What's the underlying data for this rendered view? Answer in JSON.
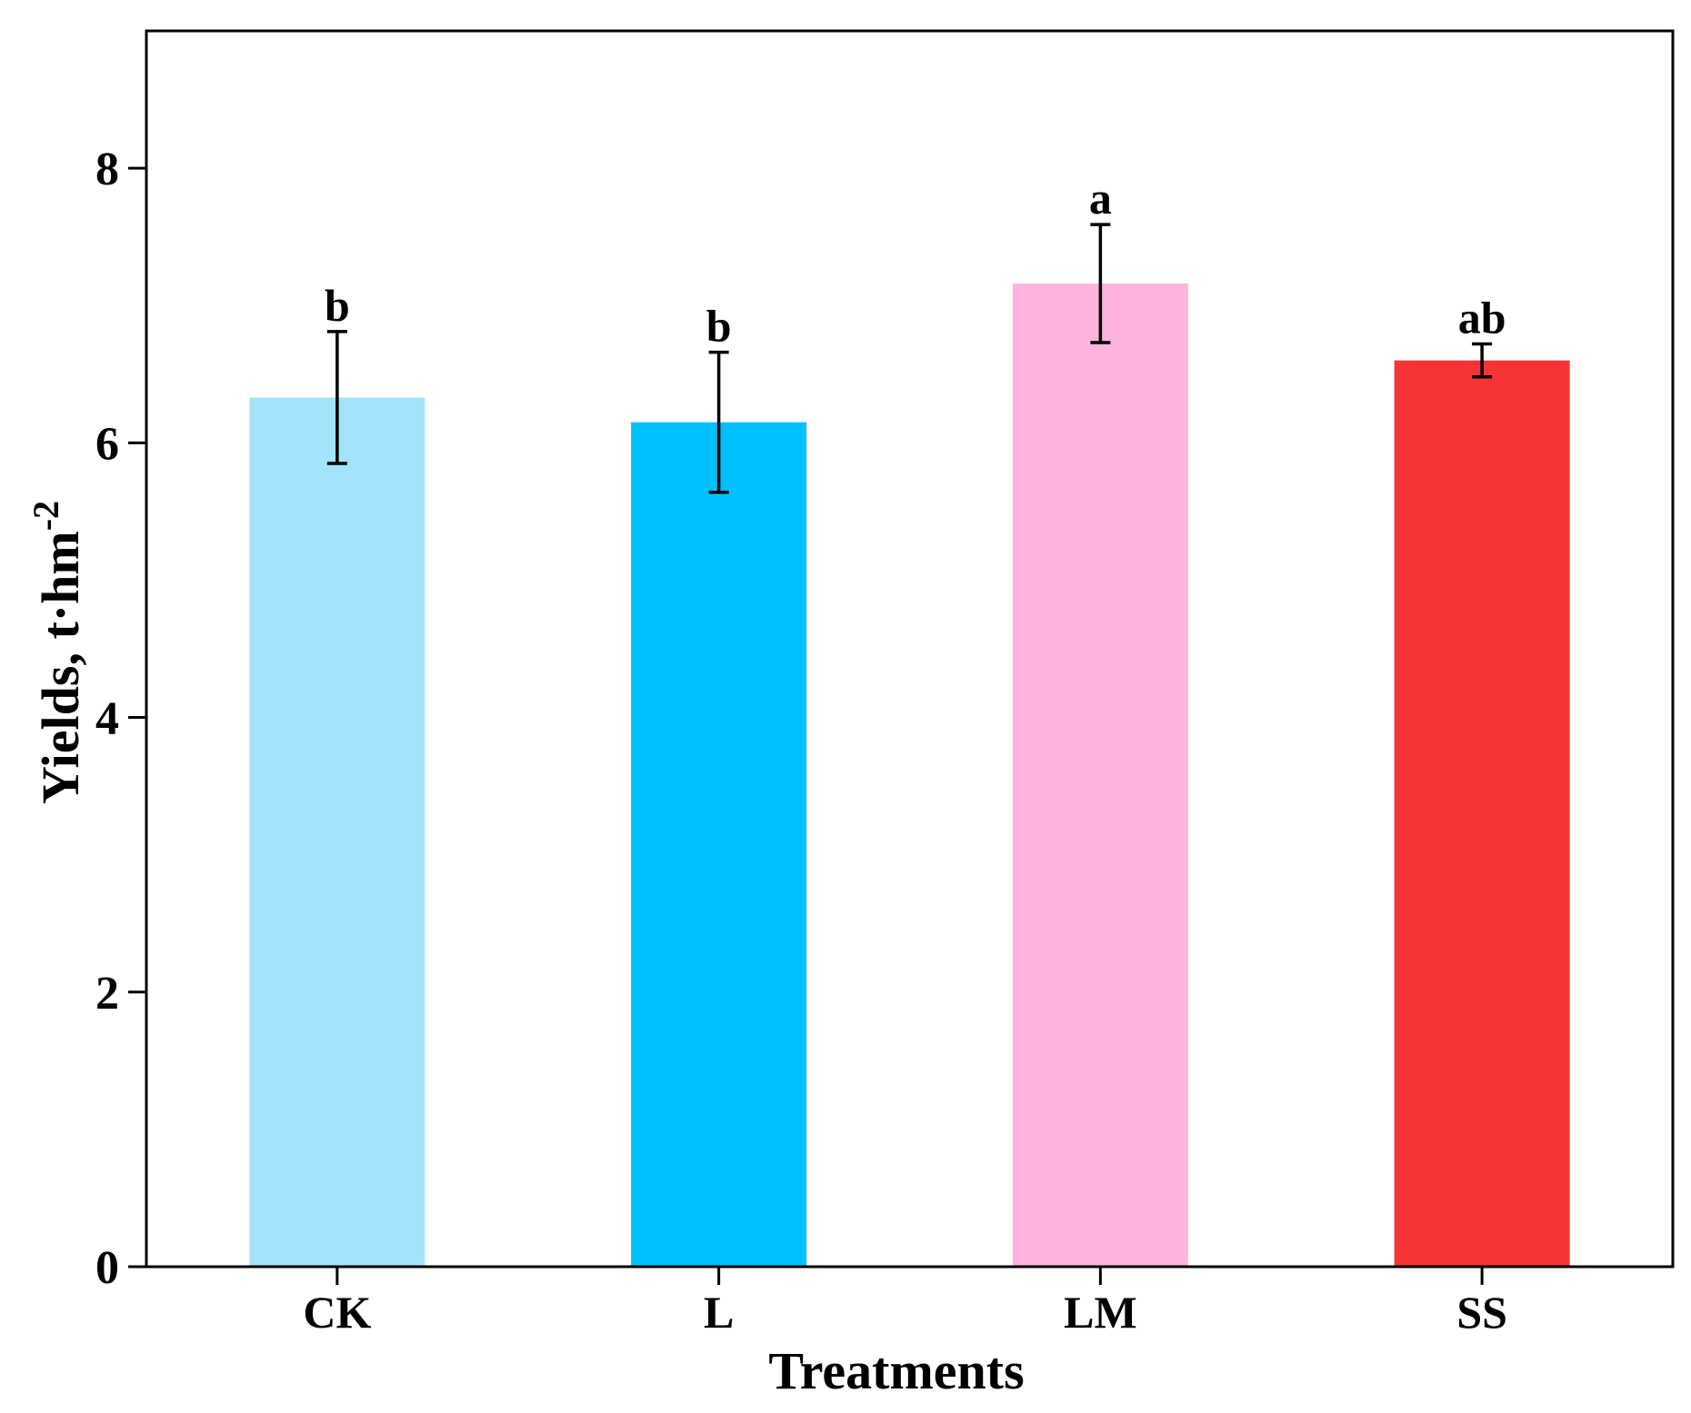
{
  "chart_data": {
    "type": "bar",
    "title": "",
    "xlabel": "Treatments",
    "ylabel": {
      "main": "Yields, t·hm",
      "superscript": "-2"
    },
    "categories": [
      "CK",
      "L",
      "LM",
      "SS"
    ],
    "values": [
      6.33,
      6.15,
      7.16,
      6.6
    ],
    "errors": [
      0.48,
      0.51,
      0.43,
      0.12
    ],
    "significance": [
      "b",
      "b",
      "a",
      "ab"
    ],
    "colors": [
      "#a3e4fc",
      "#00bfff",
      "#fdb3dd",
      "#f53535"
    ],
    "ylim": [
      0,
      9
    ],
    "yticks": [
      "0",
      "2",
      "4",
      "6",
      "8"
    ],
    "grid": false,
    "legend": "none"
  }
}
